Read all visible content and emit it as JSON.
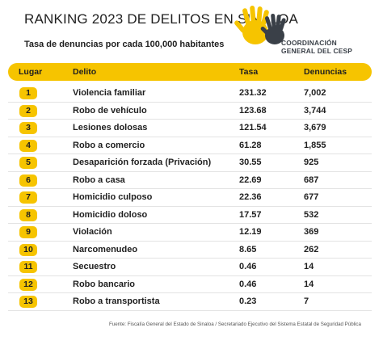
{
  "title": "RANKING 2023 DE DELITOS EN SINALOA",
  "subtitle": "Tasa de denuncias por cada 100,000 habitantes",
  "logo": {
    "line1": "COORDINACIÓN",
    "line2": "GENERAL DEL CESP",
    "color_yellow": "#f6c400",
    "color_dark": "#3a4048"
  },
  "headers": {
    "lugar": "Lugar",
    "delito": "Delito",
    "tasa": "Tasa",
    "denuncias": "Denuncias"
  },
  "rows": [
    {
      "lugar": "1",
      "delito": "Violencia familiar",
      "tasa": "231.32",
      "denuncias": "7,002"
    },
    {
      "lugar": "2",
      "delito": "Robo de vehículo",
      "tasa": "123.68",
      "denuncias": "3,744"
    },
    {
      "lugar": "3",
      "delito": "Lesiones dolosas",
      "tasa": "121.54",
      "denuncias": "3,679"
    },
    {
      "lugar": "4",
      "delito": "Robo a comercio",
      "tasa": "61.28",
      "denuncias": "1,855"
    },
    {
      "lugar": "5",
      "delito": "Desaparición forzada (Privación)",
      "tasa": "30.55",
      "denuncias": "925"
    },
    {
      "lugar": "6",
      "delito": "Robo a casa",
      "tasa": "22.69",
      "denuncias": "687"
    },
    {
      "lugar": "7",
      "delito": "Homicidio culposo",
      "tasa": "22.36",
      "denuncias": "677"
    },
    {
      "lugar": "8",
      "delito": "Homicidio doloso",
      "tasa": "17.57",
      "denuncias": "532"
    },
    {
      "lugar": "9",
      "delito": "Violación",
      "tasa": "12.19",
      "denuncias": "369"
    },
    {
      "lugar": "10",
      "delito": "Narcomenudeo",
      "tasa": "8.65",
      "denuncias": "262"
    },
    {
      "lugar": "11",
      "delito": "Secuestro",
      "tasa": "0.46",
      "denuncias": "14"
    },
    {
      "lugar": "12",
      "delito": "Robo bancario",
      "tasa": "0.46",
      "denuncias": "14"
    },
    {
      "lugar": "13",
      "delito": "Robo a transportista",
      "tasa": "0.23",
      "denuncias": "7"
    }
  ],
  "footer": "Fuente: Fiscalía General del Estado de Sinaloa / Secretariado Ejecutivo del Sistema Estatal de Seguridad Pública"
}
